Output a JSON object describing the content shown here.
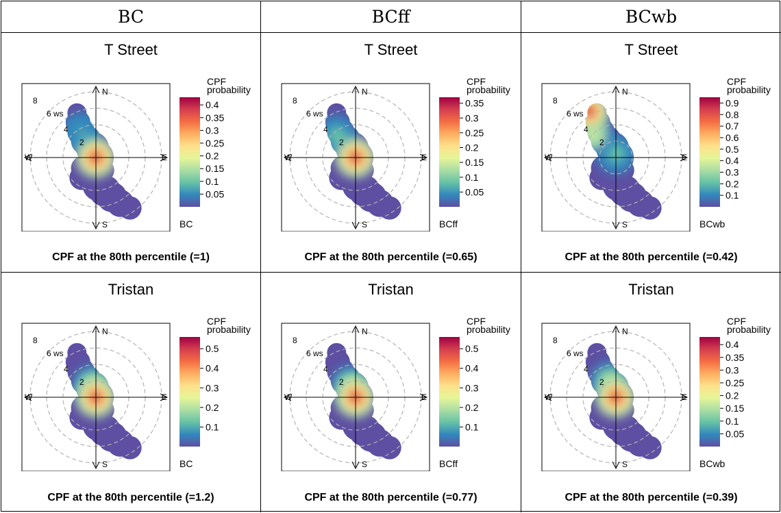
{
  "columns": [
    {
      "label": "BC"
    },
    {
      "label": "BCff"
    },
    {
      "label": "BCwb"
    }
  ],
  "colors": {
    "low": "#5e4fa2",
    "scale": [
      "#5e4fa2",
      "#3288bd",
      "#66c2a5",
      "#abdda4",
      "#e6f598",
      "#fee08b",
      "#fdae61",
      "#f46d43",
      "#d53e4f",
      "#9e0142"
    ],
    "grid": "#b3b3b3",
    "axis": "#000000"
  },
  "chart_data": [
    {
      "type": "heatmap",
      "subtype": "polar",
      "title": "T Street",
      "pollutant": "BC",
      "caption": "CPF at the 80th percentile (=1)",
      "legend_title": [
        "CPF",
        "probability"
      ],
      "legend_ticks": [
        "0.05",
        "0.1",
        "0.15",
        "0.2",
        "0.25",
        "0.3",
        "0.35",
        "0.4"
      ],
      "legend_range": [
        0,
        0.43
      ],
      "directions": [
        "N",
        "E",
        "S",
        "W"
      ],
      "ws_labels": [
        "2",
        "4",
        "6 ws",
        "8"
      ],
      "hotspots": [
        {
          "ws": 0,
          "dir": 0,
          "value": 0.43
        },
        {
          "ws": 3.5,
          "dir": 330,
          "value": 0.08
        }
      ]
    },
    {
      "type": "heatmap",
      "subtype": "polar",
      "title": "T Street",
      "pollutant": "BCff",
      "caption": "CPF at the 80th percentile (=0.65)",
      "legend_title": [
        "CPF",
        "probability"
      ],
      "legend_ticks": [
        "0.05",
        "0.1",
        "0.15",
        "0.2",
        "0.25",
        "0.3",
        "0.35"
      ],
      "legend_range": [
        0,
        0.37
      ],
      "directions": [
        "N",
        "E",
        "S",
        "W"
      ],
      "ws_labels": [
        "2",
        "4",
        "6 ws",
        "8"
      ],
      "hotspots": [
        {
          "ws": 0,
          "dir": 0,
          "value": 0.37
        },
        {
          "ws": 3.5,
          "dir": 320,
          "value": 0.1
        }
      ]
    },
    {
      "type": "heatmap",
      "subtype": "polar",
      "title": "T Street",
      "pollutant": "BCwb",
      "caption": "CPF at the 80th percentile (=0.42)",
      "legend_title": [
        "CPF",
        "probability"
      ],
      "legend_ticks": [
        "0.1",
        "0.2",
        "0.3",
        "0.4",
        "0.5",
        "0.6",
        "0.7",
        "0.8",
        "0.9"
      ],
      "legend_range": [
        0,
        0.95
      ],
      "directions": [
        "N",
        "E",
        "S",
        "W"
      ],
      "ws_labels": [
        "2",
        "4",
        "6 ws",
        "8"
      ],
      "hotspots": [
        {
          "ws": 6.5,
          "dir": 330,
          "value": 0.95
        },
        {
          "ws": 4,
          "dir": 315,
          "value": 0.45
        },
        {
          "ws": 0.5,
          "dir": 0,
          "value": 0.25
        }
      ]
    },
    {
      "type": "heatmap",
      "subtype": "polar",
      "title": "Tristan",
      "pollutant": "BC",
      "caption": "CPF at the 80th percentile (=1.2)",
      "legend_title": [
        "CPF",
        "probability"
      ],
      "legend_ticks": [
        "0.1",
        "0.2",
        "0.3",
        "0.4",
        "0.5"
      ],
      "legend_range": [
        0,
        0.56
      ],
      "directions": [
        "N",
        "E",
        "S",
        "W"
      ],
      "ws_labels": [
        "2",
        "4",
        "6 ws",
        "8"
      ],
      "hotspots": [
        {
          "ws": 0,
          "dir": 0,
          "value": 0.56
        },
        {
          "ws": 1.5,
          "dir": 345,
          "value": 0.2
        }
      ]
    },
    {
      "type": "heatmap",
      "subtype": "polar",
      "title": "Tristan",
      "pollutant": "BCff",
      "caption": "CPF at the 80th percentile (=0.77)",
      "legend_title": [
        "CPF",
        "probability"
      ],
      "legend_ticks": [
        "0.1",
        "0.2",
        "0.3",
        "0.4",
        "0.5"
      ],
      "legend_range": [
        0,
        0.56
      ],
      "directions": [
        "N",
        "E",
        "S",
        "W"
      ],
      "ws_labels": [
        "2",
        "4",
        "6 ws",
        "8"
      ],
      "hotspots": [
        {
          "ws": 0,
          "dir": 0,
          "value": 0.56
        },
        {
          "ws": 1.5,
          "dir": 340,
          "value": 0.22
        }
      ]
    },
    {
      "type": "heatmap",
      "subtype": "polar",
      "title": "Tristan",
      "pollutant": "BCwb",
      "caption": "CPF at the 80th percentile (=0.39)",
      "legend_title": [
        "CPF",
        "probability"
      ],
      "legend_ticks": [
        "0.05",
        "0.1",
        "0.15",
        "0.2",
        "0.25",
        "0.3",
        "0.35",
        "0.4"
      ],
      "legend_range": [
        0,
        0.43
      ],
      "directions": [
        "N",
        "E",
        "S",
        "W"
      ],
      "ws_labels": [
        "2",
        "4",
        "6 ws",
        "8"
      ],
      "hotspots": [
        {
          "ws": 0,
          "dir": 0,
          "value": 0.43
        },
        {
          "ws": 2,
          "dir": 340,
          "value": 0.15
        }
      ]
    }
  ]
}
